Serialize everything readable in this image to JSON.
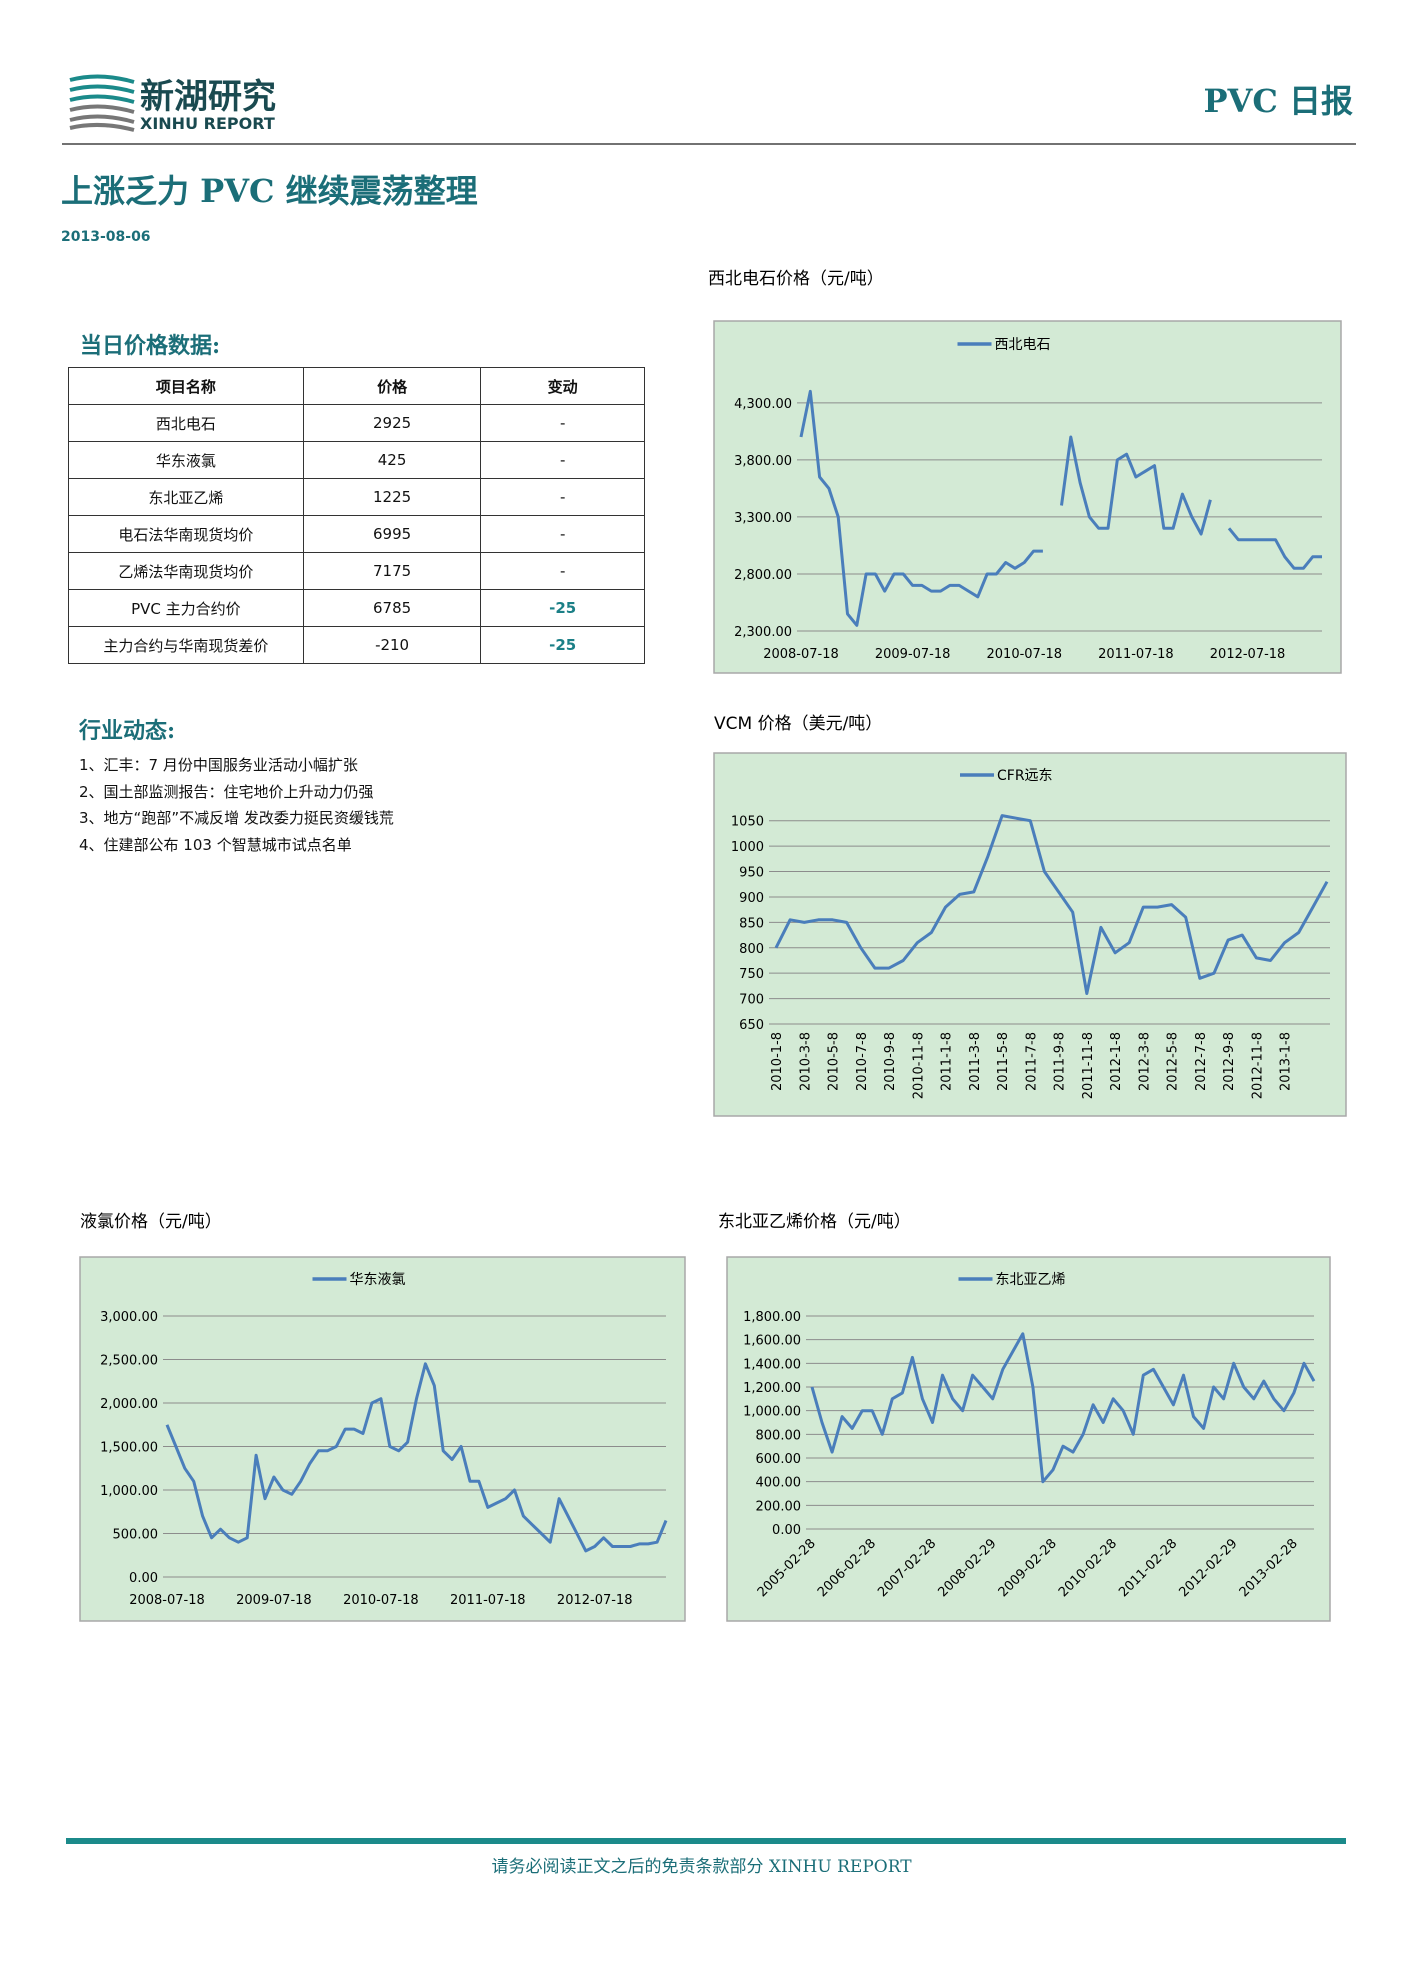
{
  "header": {
    "logo_cn": "新湖研究",
    "logo_en": "XINHU REPORT",
    "report_name": "PVC 日报"
  },
  "title": "上涨乏力 PVC 继续震荡整理",
  "date": "2013-08-06",
  "table": {
    "title": "当日价格数据:",
    "header": [
      "项目名称",
      "价格",
      "变动"
    ],
    "rows": [
      [
        "西北电石",
        2925,
        "-"
      ],
      [
        "华东液氯",
        425,
        "-"
      ],
      [
        "东北亚乙烯",
        1225,
        "-"
      ],
      [
        "电石法华南现货均价",
        6995,
        "-"
      ],
      [
        "乙烯法华南现货均价",
        7175,
        "-"
      ],
      [
        "PVC 主力合约价",
        6785,
        -25
      ],
      [
        "主力合约与华南现货差价",
        -210,
        -25
      ]
    ]
  },
  "news": {
    "title": "行业动态:",
    "items": [
      "1、汇丰：7 月份中国服务业活动小幅扩张",
      "2、国土部监测报告：住宅地价上升动力仍强",
      "3、地方“跑部”不减反增  发改委力挺民资缓钱荒",
      "4、住建部公布 103 个智慧城市试点名单"
    ]
  },
  "chart_data": [
    {
      "type": "line",
      "title": "西北电石价格（元/吨）",
      "categories": [
        "2008-07-18",
        null,
        null,
        null,
        null,
        null,
        null,
        null,
        null,
        null,
        null,
        null,
        "2009-07-18",
        null,
        null,
        null,
        null,
        null,
        null,
        null,
        null,
        null,
        null,
        null,
        "2010-07-18",
        null,
        null,
        null,
        null,
        null,
        null,
        null,
        null,
        null,
        null,
        null,
        "2011-07-18",
        null,
        null,
        null,
        null,
        null,
        null,
        null,
        null,
        null,
        null,
        null,
        "2012-07-18",
        null,
        null,
        null,
        null,
        null,
        null,
        null,
        null
      ],
      "series": [
        {
          "name": "西北电石",
          "color": "#4a7ebb",
          "values": [
            4000,
            4400,
            3650,
            3550,
            3300,
            2450,
            2350,
            2800,
            2800,
            2650,
            2800,
            2800,
            2700,
            2700,
            2650,
            2650,
            2700,
            2700,
            2650,
            2600,
            2800,
            2800,
            2900,
            2850,
            2900,
            3000,
            3000,
            null,
            3400,
            4000,
            3600,
            3300,
            3200,
            3200,
            3800,
            3850,
            3650,
            3700,
            3750,
            3200,
            3200,
            3500,
            3300,
            3150,
            3450,
            null,
            3200,
            3100,
            3100,
            3100,
            3100,
            3100,
            2950,
            2850,
            2850,
            2950,
            2950
          ]
        }
      ],
      "ylim": [
        2300,
        4500
      ],
      "yticks": [
        {
          "value": 2300,
          "label": "2,300.00"
        },
        {
          "value": 2800,
          "label": "2,800.00"
        },
        {
          "value": 3300,
          "label": "3,300.00"
        },
        {
          "value": 3800,
          "label": "3,800.00"
        },
        {
          "value": 4300,
          "label": "4,300.00"
        }
      ],
      "grid": true
    },
    {
      "type": "line",
      "title": "VCM 价格（美元/吨）",
      "categories": [
        "2010-1-8",
        null,
        "2010-3-8",
        null,
        "2010-5-8",
        null,
        "2010-7-8",
        null,
        "2010-9-8",
        null,
        "2010-11-8",
        null,
        "2011-1-8",
        null,
        "2011-3-8",
        null,
        "2011-5-8",
        null,
        "2011-7-8",
        null,
        "2011-9-8",
        null,
        "2011-11-8",
        null,
        "2012-1-8",
        null,
        "2012-3-8",
        null,
        "2012-5-8",
        null,
        "2012-7-8",
        null,
        "2012-9-8",
        null,
        "2012-11-8",
        null,
        "2013-1-8",
        null,
        null,
        null
      ],
      "series": [
        {
          "name": "CFR远东",
          "color": "#4a7ebb",
          "values": [
            800,
            855,
            850,
            855,
            855,
            850,
            800,
            760,
            760,
            775,
            810,
            830,
            880,
            905,
            910,
            980,
            1060,
            1055,
            1050,
            950,
            910,
            870,
            710,
            840,
            790,
            810,
            880,
            880,
            885,
            860,
            740,
            750,
            815,
            825,
            780,
            775,
            810,
            830,
            880,
            930
          ]
        }
      ],
      "ylim": [
        650,
        1075
      ],
      "yticks": [
        650,
        700,
        750,
        800,
        850,
        900,
        950,
        1000,
        1050
      ],
      "grid": true
    },
    {
      "type": "line",
      "title": "液氯价格（元/吨）",
      "categories": [
        "2008-07-18",
        null,
        null,
        null,
        null,
        null,
        null,
        null,
        null,
        null,
        null,
        null,
        "2009-07-18",
        null,
        null,
        null,
        null,
        null,
        null,
        null,
        null,
        null,
        null,
        null,
        "2010-07-18",
        null,
        null,
        null,
        null,
        null,
        null,
        null,
        null,
        null,
        null,
        null,
        "2011-07-18",
        null,
        null,
        null,
        null,
        null,
        null,
        null,
        null,
        null,
        null,
        null,
        "2012-07-18",
        null,
        null,
        null,
        null,
        null,
        null,
        null,
        null
      ],
      "series": [
        {
          "name": "华东液氯",
          "color": "#4a7ebb",
          "values": [
            1750,
            1500,
            1250,
            1100,
            700,
            450,
            550,
            450,
            400,
            450,
            1400,
            900,
            1150,
            1000,
            950,
            1100,
            1300,
            1450,
            1450,
            1500,
            1700,
            1700,
            1650,
            2000,
            2050,
            1500,
            1450,
            1550,
            2050,
            2450,
            2200,
            1450,
            1350,
            1500,
            1100,
            1100,
            800,
            850,
            900,
            1000,
            700,
            600,
            500,
            400,
            900,
            700,
            500,
            300,
            350,
            450,
            350,
            350,
            350,
            380,
            380,
            400,
            650
          ]
        }
      ],
      "ylim": [
        0,
        3000
      ],
      "yticks": [
        {
          "value": 0,
          "label": "0.00"
        },
        {
          "value": 500,
          "label": "500.00"
        },
        {
          "value": 1000,
          "label": "1,000.00"
        },
        {
          "value": 1500,
          "label": "1,500.00"
        },
        {
          "value": 2000,
          "label": "2,000.00"
        },
        {
          "value": 2500,
          "label": "2,500.00"
        },
        {
          "value": 3000,
          "label": "3,000.00"
        }
      ],
      "grid": true
    },
    {
      "type": "line",
      "title": "东北亚乙烯价格（元/吨）",
      "categories": [
        "2005-02-28",
        null,
        null,
        null,
        null,
        null,
        "2006-02-28",
        null,
        null,
        null,
        null,
        null,
        "2007-02-28",
        null,
        null,
        null,
        null,
        null,
        "2008-02-29",
        null,
        null,
        null,
        null,
        null,
        "2009-02-28",
        null,
        null,
        null,
        null,
        null,
        "2010-02-28",
        null,
        null,
        null,
        null,
        null,
        "2011-02-28",
        null,
        null,
        null,
        null,
        null,
        "2012-02-29",
        null,
        null,
        null,
        null,
        null,
        "2013-02-28",
        null,
        null
      ],
      "series": [
        {
          "name": "东北亚乙烯",
          "color": "#4a7ebb",
          "values": [
            1200,
            900,
            650,
            950,
            850,
            1000,
            1000,
            800,
            1100,
            1150,
            1450,
            1100,
            900,
            1300,
            1100,
            1000,
            1300,
            1200,
            1100,
            1350,
            1500,
            1650,
            1200,
            400,
            500,
            700,
            650,
            800,
            1050,
            900,
            1100,
            1000,
            800,
            1300,
            1350,
            1200,
            1050,
            1300,
            950,
            850,
            1200,
            1100,
            1400,
            1200,
            1100,
            1250,
            1100,
            1000,
            1150,
            1400,
            1250
          ]
        }
      ],
      "ylim": [
        0,
        1800
      ],
      "yticks": [
        {
          "value": 0,
          "label": "0.00"
        },
        {
          "value": 200,
          "label": "200.00"
        },
        {
          "value": 400,
          "label": "400.00"
        },
        {
          "value": 600,
          "label": "600.00"
        },
        {
          "value": 800,
          "label": "800.00"
        },
        {
          "value": 1000,
          "label": "1,000.00"
        },
        {
          "value": 1200,
          "label": "1,200.00"
        },
        {
          "value": 1400,
          "label": "1,400.00"
        },
        {
          "value": 1600,
          "label": "1,600.00"
        },
        {
          "value": 1800,
          "label": "1,800.00"
        }
      ],
      "grid": true
    }
  ],
  "footer": "请务必阅读正文之后的免责条款部分 XINHU REPORT"
}
